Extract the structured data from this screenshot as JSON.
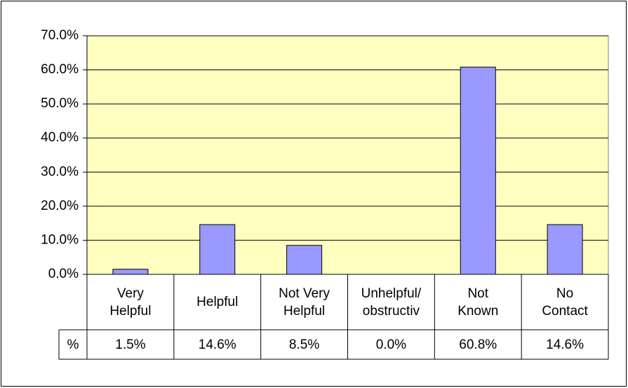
{
  "chart_data": {
    "type": "bar",
    "categories": [
      "Very\nHelpful",
      "Helpful",
      "Not Very\nHelpful",
      "Unhelpful/\nobstructiv",
      "Not\nKnown",
      "No\nContact"
    ],
    "series": [
      {
        "name": "%",
        "color": "#9999ff",
        "values": [
          1.5,
          14.6,
          8.5,
          0.0,
          60.8,
          14.6
        ],
        "value_labels": [
          "1.5%",
          "14.6%",
          "8.5%",
          "0.0%",
          "60.8%",
          "14.6%"
        ]
      }
    ],
    "ylim": [
      0,
      70
    ],
    "yticks": [
      {
        "value": 0,
        "label": "0.0%"
      },
      {
        "value": 10,
        "label": "10.0%"
      },
      {
        "value": 20,
        "label": "20.0%"
      },
      {
        "value": 30,
        "label": "30.0%"
      },
      {
        "value": 40,
        "label": "40.0%"
      },
      {
        "value": 50,
        "label": "50.0%"
      },
      {
        "value": 60,
        "label": "60.0%"
      },
      {
        "value": 70,
        "label": "70.0%"
      }
    ],
    "grid": true,
    "plot_background": "#ffffc0",
    "data_table": true
  }
}
